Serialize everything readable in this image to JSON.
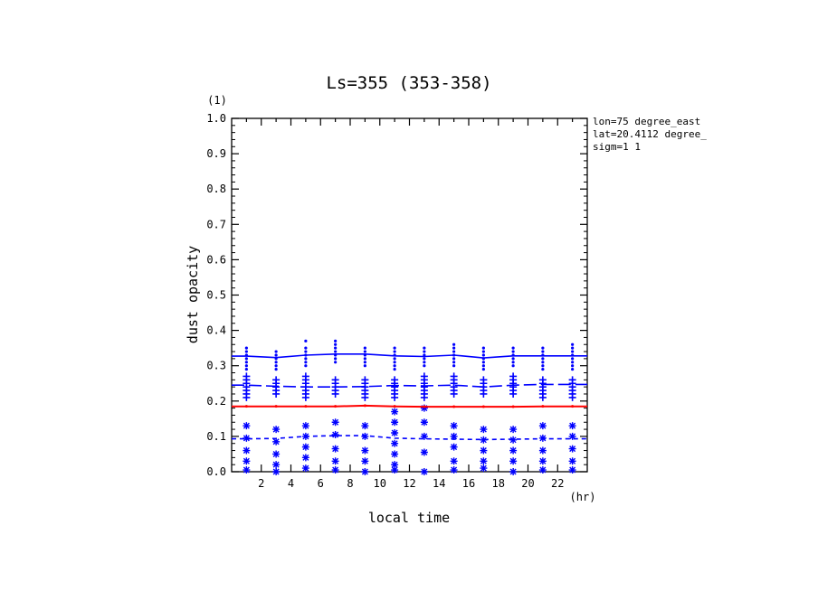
{
  "chart_data": {
    "type": "line",
    "title": "Ls=355 (353-358)",
    "xlabel": "local time",
    "xunit": "(hr)",
    "ylabel": "dust opacity",
    "yunit": "(1)",
    "info": [
      "lon=75 degree_east",
      "lat=20.4112 degree_",
      "sigm=1 1"
    ],
    "xlim": [
      0,
      24
    ],
    "ylim": [
      0,
      1
    ],
    "xticks": [
      2,
      4,
      6,
      8,
      10,
      12,
      14,
      16,
      18,
      20,
      22
    ],
    "yticks": [
      "0.0",
      "0.1",
      "0.2",
      "0.3",
      "0.4",
      "0.5",
      "0.6",
      "0.7",
      "0.8",
      "0.9",
      "1.0"
    ],
    "grid": false,
    "colors": {
      "red": "#ff0000",
      "blue": "#0000ff",
      "axis": "#000000"
    },
    "series": [
      {
        "style": "solid-red",
        "color": "#ff0000",
        "x": [
          1,
          3,
          5,
          7,
          9,
          11,
          13,
          15,
          17,
          19,
          21,
          23
        ],
        "values": [
          0.185,
          0.185,
          0.185,
          0.185,
          0.187,
          0.185,
          0.184,
          0.184,
          0.184,
          0.184,
          0.185,
          0.185
        ]
      },
      {
        "style": "solid-blue",
        "color": "#0000ff",
        "x": [
          1,
          3,
          5,
          7,
          9,
          11,
          13,
          15,
          17,
          19,
          21,
          23
        ],
        "values": [
          0.327,
          0.323,
          0.33,
          0.333,
          0.333,
          0.328,
          0.326,
          0.33,
          0.322,
          0.328,
          0.328,
          0.328
        ]
      },
      {
        "style": "longdash-blue",
        "color": "#0000ff",
        "x": [
          1,
          3,
          5,
          7,
          9,
          11,
          13,
          15,
          17,
          19,
          21,
          23
        ],
        "values": [
          0.245,
          0.242,
          0.24,
          0.24,
          0.241,
          0.244,
          0.243,
          0.245,
          0.24,
          0.245,
          0.247,
          0.247
        ]
      },
      {
        "style": "shortdash-blue",
        "color": "#0000ff",
        "x": [
          1,
          3,
          5,
          7,
          9,
          11,
          13,
          15,
          17,
          19,
          21,
          23
        ],
        "values": [
          0.093,
          0.094,
          0.1,
          0.102,
          0.102,
          0.095,
          0.093,
          0.092,
          0.091,
          0.092,
          0.093,
          0.093
        ]
      }
    ],
    "scatter": [
      {
        "marker": "dot",
        "color": "#0000ff",
        "x": [
          1,
          3,
          5,
          7,
          9,
          11,
          13,
          15,
          17,
          19,
          21,
          23
        ],
        "values": [
          [
            0.35,
            0.34,
            0.33,
            0.32,
            0.31,
            0.3,
            0.29
          ],
          [
            0.34,
            0.33,
            0.32,
            0.31,
            0.3,
            0.29
          ],
          [
            0.37,
            0.35,
            0.34,
            0.33,
            0.32,
            0.31,
            0.3
          ],
          [
            0.37,
            0.36,
            0.35,
            0.34,
            0.33,
            0.32,
            0.31
          ],
          [
            0.35,
            0.34,
            0.33,
            0.32,
            0.31,
            0.3
          ],
          [
            0.35,
            0.34,
            0.33,
            0.32,
            0.31,
            0.3,
            0.29
          ],
          [
            0.35,
            0.34,
            0.33,
            0.32,
            0.31,
            0.3
          ],
          [
            0.36,
            0.35,
            0.34,
            0.33,
            0.32,
            0.31,
            0.3
          ],
          [
            0.35,
            0.34,
            0.33,
            0.32,
            0.31,
            0.3,
            0.29
          ],
          [
            0.35,
            0.34,
            0.33,
            0.32,
            0.31,
            0.3
          ],
          [
            0.35,
            0.34,
            0.33,
            0.32,
            0.31,
            0.3,
            0.29
          ],
          [
            0.36,
            0.35,
            0.34,
            0.33,
            0.32,
            0.31,
            0.3,
            0.29
          ]
        ]
      },
      {
        "marker": "plus",
        "color": "#0000ff",
        "x": [
          1,
          3,
          5,
          7,
          9,
          11,
          13,
          15,
          17,
          19,
          21,
          23
        ],
        "values": [
          [
            0.27,
            0.26,
            0.25,
            0.24,
            0.23,
            0.22,
            0.21
          ],
          [
            0.26,
            0.25,
            0.24,
            0.23,
            0.22
          ],
          [
            0.27,
            0.26,
            0.25,
            0.24,
            0.23,
            0.22,
            0.21
          ],
          [
            0.26,
            0.25,
            0.24,
            0.23,
            0.22
          ],
          [
            0.26,
            0.25,
            0.24,
            0.23,
            0.22,
            0.21
          ],
          [
            0.26,
            0.25,
            0.24,
            0.23,
            0.22,
            0.21
          ],
          [
            0.27,
            0.26,
            0.25,
            0.24,
            0.23,
            0.22,
            0.21
          ],
          [
            0.27,
            0.26,
            0.25,
            0.24,
            0.23,
            0.22
          ],
          [
            0.26,
            0.25,
            0.24,
            0.23,
            0.22
          ],
          [
            0.27,
            0.26,
            0.25,
            0.24,
            0.23,
            0.22
          ],
          [
            0.26,
            0.25,
            0.24,
            0.23,
            0.22,
            0.21
          ],
          [
            0.26,
            0.25,
            0.24,
            0.23,
            0.22,
            0.21
          ]
        ]
      },
      {
        "marker": "asterisk",
        "color": "#0000ff",
        "x": [
          1,
          3,
          5,
          7,
          9,
          11,
          13,
          15,
          17,
          19,
          21,
          23
        ],
        "values": [
          [
            0.13,
            0.095,
            0.06,
            0.03,
            0.005
          ],
          [
            0.12,
            0.085,
            0.05,
            0.02,
            0.0
          ],
          [
            0.13,
            0.1,
            0.07,
            0.04,
            0.01
          ],
          [
            0.14,
            0.105,
            0.065,
            0.03,
            0.005
          ],
          [
            0.13,
            0.1,
            0.06,
            0.03,
            0.0
          ],
          [
            0.17,
            0.14,
            0.11,
            0.08,
            0.05,
            0.02,
            0.005
          ],
          [
            0.18,
            0.14,
            0.1,
            0.055,
            0.0
          ],
          [
            0.13,
            0.1,
            0.07,
            0.03,
            0.005
          ],
          [
            0.12,
            0.09,
            0.06,
            0.03,
            0.01
          ],
          [
            0.12,
            0.09,
            0.06,
            0.03,
            0.0
          ],
          [
            0.13,
            0.095,
            0.06,
            0.03,
            0.005
          ],
          [
            0.13,
            0.1,
            0.065,
            0.03,
            0.005
          ]
        ]
      }
    ]
  }
}
